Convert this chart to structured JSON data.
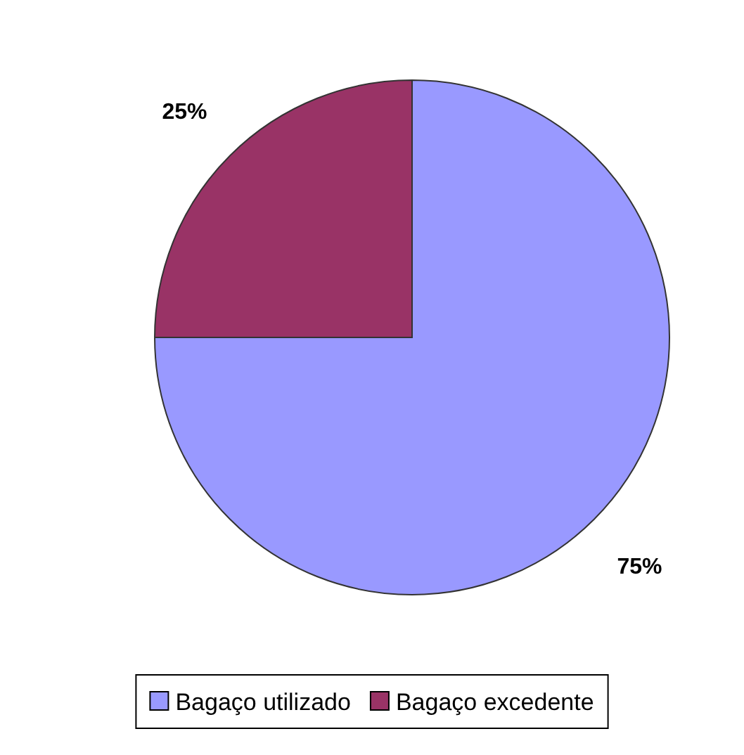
{
  "chart_data": {
    "type": "pie",
    "categories": [
      "Bagaço utilizado",
      "Bagaço excedente"
    ],
    "values": [
      75,
      25
    ],
    "colors": [
      "#9999ff",
      "#993366"
    ],
    "data_labels": true,
    "value_labels": [
      "75%",
      "25%"
    ],
    "legend": "bottom"
  }
}
